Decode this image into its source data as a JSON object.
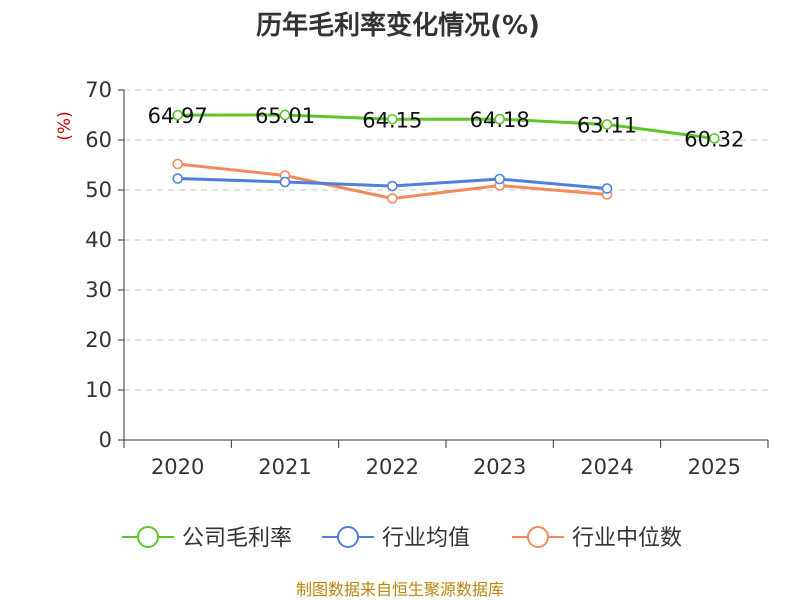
{
  "chart_data": {
    "type": "line",
    "title": "历年毛利率变化情况(%)",
    "ylabel": "(%)",
    "xlabel": "",
    "categories": [
      "2020",
      "2021",
      "2022",
      "2023",
      "2024",
      "2025"
    ],
    "ylim": [
      0,
      70
    ],
    "yticks": [
      0,
      10,
      20,
      30,
      40,
      50,
      60,
      70
    ],
    "grid": true,
    "legend_position": "bottom",
    "series": [
      {
        "name": "公司毛利率",
        "color": "#5ec62a",
        "values": [
          64.97,
          65.01,
          64.15,
          64.18,
          63.11,
          60.32
        ],
        "labels": [
          "64.97",
          "65.01",
          "64.15",
          "64.18",
          "63.11",
          "60.32"
        ]
      },
      {
        "name": "行业均值",
        "color": "#4f7fe0",
        "values": [
          52.3,
          51.6,
          50.8,
          52.2,
          50.3,
          null
        ]
      },
      {
        "name": "行业中位数",
        "color": "#f28b5b",
        "values": [
          55.2,
          52.9,
          48.3,
          50.9,
          49.1,
          null
        ]
      }
    ]
  },
  "source": "制图数据来自恒生聚源数据库"
}
